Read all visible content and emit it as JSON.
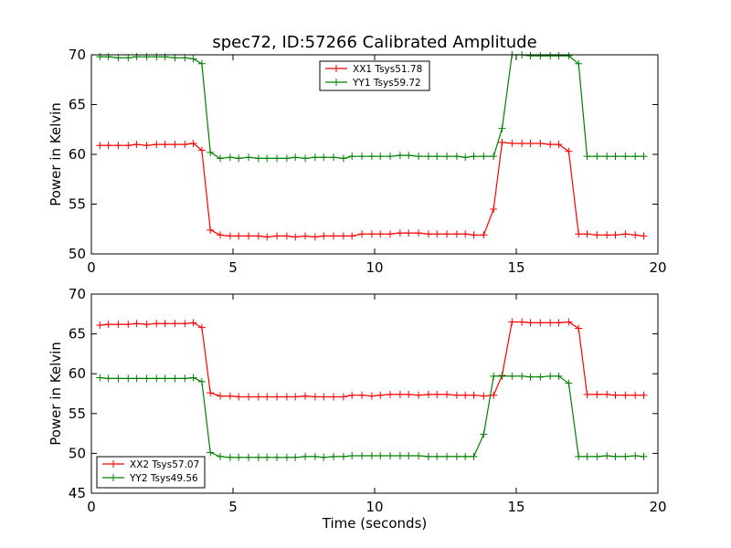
{
  "figure": {
    "title": "spec72, ID:57266 Calibrated Amplitude",
    "xlabel": "Time (seconds)"
  },
  "chart_data": [
    {
      "type": "line",
      "title": "spec72, ID:57266 Calibrated Amplitude",
      "xlabel": "",
      "ylabel": "Power in Kelvin",
      "xlim": [
        0,
        20
      ],
      "ylim": [
        50,
        70
      ],
      "xticks": [
        0,
        5,
        10,
        15,
        20
      ],
      "yticks": [
        50,
        55,
        60,
        65,
        70
      ],
      "legend_position": "top-center",
      "x": [
        0.3,
        0.6,
        0.95,
        1.3,
        1.6,
        1.95,
        2.3,
        2.6,
        2.95,
        3.3,
        3.6,
        3.9,
        4.2,
        4.55,
        4.9,
        5.2,
        5.55,
        5.9,
        6.2,
        6.55,
        6.9,
        7.2,
        7.55,
        7.9,
        8.2,
        8.55,
        8.9,
        9.2,
        9.55,
        9.9,
        10.2,
        10.55,
        10.9,
        11.2,
        11.55,
        11.9,
        12.2,
        12.55,
        12.9,
        13.2,
        13.5,
        13.85,
        14.2,
        14.5,
        14.85,
        15.2,
        15.5,
        15.85,
        16.2,
        16.5,
        16.85,
        17.2,
        17.5,
        17.85,
        18.2,
        18.5,
        18.85,
        19.2,
        19.5
      ],
      "series": [
        {
          "name": "XX1 Tsys51.78",
          "color": "#ff0000",
          "values": [
            60.9,
            60.9,
            60.9,
            60.9,
            61.0,
            60.9,
            61.0,
            61.0,
            61.0,
            61.0,
            61.1,
            60.4,
            52.4,
            51.9,
            51.8,
            51.8,
            51.8,
            51.8,
            51.7,
            51.8,
            51.8,
            51.7,
            51.8,
            51.7,
            51.8,
            51.8,
            51.8,
            51.8,
            52.0,
            52.0,
            52.0,
            52.0,
            52.1,
            52.1,
            52.1,
            52.0,
            52.0,
            52.0,
            52.0,
            52.0,
            51.9,
            51.9,
            54.5,
            61.2,
            61.1,
            61.1,
            61.1,
            61.1,
            61.0,
            61.0,
            60.3,
            52.0,
            52.0,
            51.9,
            51.9,
            51.9,
            52.0,
            51.9,
            51.8
          ],
          "pattern": "step"
        },
        {
          "name": "YY1 Tsys59.72",
          "color": "#008000",
          "values": [
            69.8,
            69.8,
            69.7,
            69.7,
            69.8,
            69.8,
            69.8,
            69.8,
            69.7,
            69.7,
            69.6,
            69.1,
            60.2,
            59.6,
            59.7,
            59.6,
            59.7,
            59.6,
            59.6,
            59.6,
            59.6,
            59.7,
            59.6,
            59.7,
            59.7,
            59.7,
            59.6,
            59.8,
            59.8,
            59.8,
            59.8,
            59.8,
            59.9,
            59.9,
            59.8,
            59.8,
            59.8,
            59.8,
            59.8,
            59.7,
            59.8,
            59.8,
            59.8,
            62.6,
            70.0,
            70.0,
            69.9,
            69.9,
            69.9,
            69.9,
            69.9,
            69.1,
            59.8,
            59.8,
            59.8,
            59.8,
            59.8,
            59.8,
            59.8
          ],
          "pattern": "step"
        }
      ]
    },
    {
      "type": "line",
      "title": "",
      "xlabel": "Time (seconds)",
      "ylabel": "Power in Kelvin",
      "xlim": [
        0,
        20
      ],
      "ylim": [
        45,
        70
      ],
      "xticks": [
        0,
        5,
        10,
        15,
        20
      ],
      "yticks": [
        45,
        50,
        55,
        60,
        65,
        70
      ],
      "legend_position": "bottom-left",
      "x": [
        0.3,
        0.6,
        0.95,
        1.3,
        1.6,
        1.95,
        2.3,
        2.6,
        2.95,
        3.3,
        3.6,
        3.9,
        4.2,
        4.55,
        4.9,
        5.2,
        5.55,
        5.9,
        6.2,
        6.55,
        6.9,
        7.2,
        7.55,
        7.9,
        8.2,
        8.55,
        8.9,
        9.2,
        9.55,
        9.9,
        10.2,
        10.55,
        10.9,
        11.2,
        11.55,
        11.9,
        12.2,
        12.55,
        12.9,
        13.2,
        13.5,
        13.85,
        14.2,
        14.5,
        14.85,
        15.2,
        15.5,
        15.85,
        16.2,
        16.5,
        16.85,
        17.2,
        17.5,
        17.85,
        18.2,
        18.5,
        18.85,
        19.2,
        19.5
      ],
      "series": [
        {
          "name": "XX2 Tsys57.07",
          "color": "#ff0000",
          "values": [
            66.1,
            66.2,
            66.2,
            66.2,
            66.3,
            66.2,
            66.3,
            66.3,
            66.3,
            66.3,
            66.4,
            65.8,
            57.6,
            57.2,
            57.2,
            57.1,
            57.1,
            57.1,
            57.1,
            57.1,
            57.1,
            57.1,
            57.2,
            57.1,
            57.1,
            57.1,
            57.1,
            57.3,
            57.3,
            57.2,
            57.3,
            57.4,
            57.4,
            57.4,
            57.3,
            57.4,
            57.4,
            57.4,
            57.3,
            57.3,
            57.3,
            57.2,
            57.3,
            59.8,
            66.5,
            66.5,
            66.4,
            66.4,
            66.4,
            66.4,
            66.5,
            65.7,
            57.4,
            57.4,
            57.4,
            57.3,
            57.3,
            57.3,
            57.3
          ],
          "pattern": "step"
        },
        {
          "name": "YY2 Tsys49.56",
          "color": "#008000",
          "values": [
            59.5,
            59.4,
            59.4,
            59.4,
            59.4,
            59.4,
            59.4,
            59.4,
            59.4,
            59.4,
            59.5,
            59.0,
            50.1,
            49.6,
            49.5,
            49.5,
            49.5,
            49.5,
            49.5,
            49.5,
            49.5,
            49.5,
            49.6,
            49.6,
            49.5,
            49.6,
            49.6,
            49.7,
            49.7,
            49.7,
            49.7,
            49.7,
            49.7,
            49.7,
            49.7,
            49.6,
            49.6,
            49.6,
            49.6,
            49.6,
            49.6,
            52.4,
            59.7,
            59.7,
            59.7,
            59.7,
            59.6,
            59.6,
            59.7,
            59.7,
            58.8,
            49.6,
            49.6,
            49.6,
            49.7,
            49.6,
            49.6,
            49.7,
            49.6
          ],
          "pattern": "step"
        }
      ]
    }
  ]
}
